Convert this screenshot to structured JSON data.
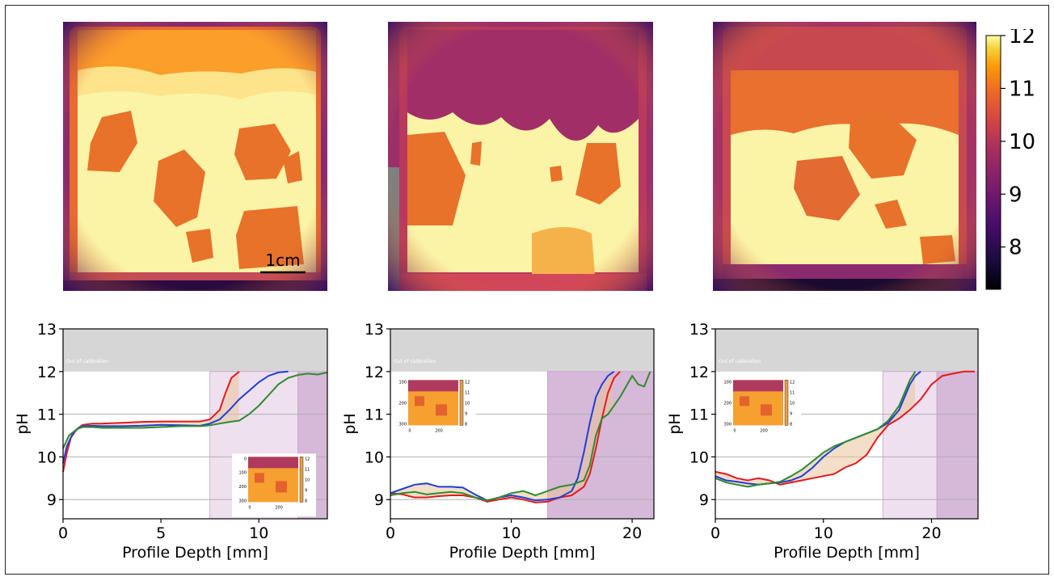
{
  "colorbar": {
    "ticks": [
      12,
      11,
      10,
      9,
      8
    ],
    "range": [
      7.2,
      12.0
    ]
  },
  "scalebar": {
    "label": "1cm"
  },
  "chart_data": [
    {
      "type": "line",
      "xlabel": "Profile Depth [mm]",
      "ylabel": "pH",
      "xlim": [
        0,
        13.5
      ],
      "ylim": [
        8.55,
        13.0
      ],
      "xticks": [
        0,
        5,
        10
      ],
      "yticks": [
        9,
        10,
        11,
        12,
        13
      ],
      "annotation": "Out of calibration",
      "out_of_calibration_above": 12.0,
      "shaded_regions": [
        {
          "x": [
            7.5,
            12.0
          ],
          "shade": "light"
        },
        {
          "x": [
            12.0,
            13.5
          ],
          "shade": "dark"
        }
      ],
      "inset": {
        "yticks": [
          0,
          100,
          200,
          300
        ],
        "xticks": [
          0,
          200
        ],
        "cbar_ticks": [
          12,
          11,
          10,
          9,
          8
        ],
        "position": "lower-right"
      },
      "series": [
        {
          "color": "#e31a1c",
          "x": [
            0,
            0.2,
            0.4,
            0.7,
            1.0,
            1.5,
            2.0,
            3.0,
            4.0,
            5.0,
            6.0,
            7.0,
            7.5,
            8.0,
            8.3,
            8.6,
            9.0
          ],
          "y": [
            9.65,
            10.1,
            10.45,
            10.65,
            10.75,
            10.78,
            10.78,
            10.8,
            10.82,
            10.83,
            10.83,
            10.83,
            10.88,
            11.1,
            11.5,
            11.85,
            12.0
          ]
        },
        {
          "color": "#1f3fd6",
          "x": [
            0,
            0.2,
            0.5,
            0.8,
            1.0,
            1.5,
            2.0,
            3.0,
            4.0,
            5.0,
            6.0,
            7.0,
            7.5,
            8.0,
            8.5,
            9.0,
            9.5,
            10.0,
            10.5,
            11.0,
            11.5
          ],
          "y": [
            9.85,
            10.25,
            10.55,
            10.68,
            10.72,
            10.73,
            10.72,
            10.72,
            10.73,
            10.75,
            10.74,
            10.73,
            10.78,
            10.88,
            11.1,
            11.35,
            11.55,
            11.75,
            11.9,
            11.98,
            12.0
          ]
        },
        {
          "color": "#2e8b2e",
          "x": [
            0,
            0.3,
            0.7,
            1.0,
            1.5,
            2.0,
            3.0,
            4.0,
            5.0,
            6.0,
            7.0,
            7.5,
            8.0,
            8.5,
            9.0,
            9.5,
            10.0,
            10.5,
            11.0,
            11.5,
            12.0,
            12.5,
            13.0,
            13.5
          ],
          "y": [
            10.2,
            10.5,
            10.65,
            10.7,
            10.7,
            10.68,
            10.68,
            10.68,
            10.7,
            10.72,
            10.72,
            10.74,
            10.78,
            10.82,
            10.85,
            11.0,
            11.2,
            11.45,
            11.7,
            11.85,
            11.92,
            11.95,
            11.93,
            11.98
          ]
        }
      ]
    },
    {
      "type": "line",
      "xlabel": "Profile Depth [mm]",
      "ylabel": "pH",
      "xlim": [
        0,
        21.8
      ],
      "ylim": [
        8.55,
        13.0
      ],
      "xticks": [
        0,
        10,
        20
      ],
      "yticks": [
        9,
        10,
        11,
        12,
        13
      ],
      "annotation": "Out of calibration",
      "out_of_calibration_above": 12.0,
      "shaded_regions": [
        {
          "x": [
            13.0,
            21.8
          ],
          "shade": "dark"
        }
      ],
      "inset": {
        "yticks": [
          100,
          200,
          300
        ],
        "xticks": [
          0,
          200
        ],
        "cbar_ticks": [
          12,
          11,
          10,
          9,
          8
        ],
        "position": "upper-left"
      },
      "series": [
        {
          "color": "#e31a1c",
          "x": [
            0,
            1,
            2,
            3,
            4,
            5,
            6,
            7,
            8,
            9,
            10,
            11,
            12,
            13,
            14,
            15,
            16,
            16.5,
            17,
            17.5,
            18,
            18.5,
            19
          ],
          "y": [
            9.15,
            9.12,
            9.05,
            9.05,
            9.08,
            9.1,
            9.1,
            9.05,
            8.95,
            9.0,
            9.05,
            9.0,
            8.93,
            8.95,
            9.05,
            9.1,
            9.3,
            9.6,
            10.2,
            10.9,
            11.5,
            11.85,
            12.0
          ]
        },
        {
          "color": "#1f3fd6",
          "x": [
            0,
            1,
            2,
            3,
            4,
            5,
            6,
            7,
            8,
            9,
            10,
            11,
            12,
            13,
            14,
            15,
            15.5,
            16,
            16.5,
            17,
            17.5,
            18,
            18.5
          ],
          "y": [
            9.15,
            9.25,
            9.35,
            9.38,
            9.3,
            9.3,
            9.28,
            9.12,
            8.98,
            9.05,
            9.1,
            9.05,
            8.98,
            9.0,
            9.05,
            9.2,
            9.5,
            10.1,
            10.8,
            11.4,
            11.7,
            11.9,
            12.0
          ]
        },
        {
          "color": "#2e8b2e",
          "x": [
            0,
            1,
            2,
            3,
            4,
            5,
            6,
            7,
            8,
            9,
            10,
            11,
            12,
            13,
            14,
            15,
            16,
            16.5,
            17,
            17.5,
            18,
            19,
            20,
            20.5,
            21,
            21.5
          ],
          "y": [
            9.1,
            9.15,
            9.18,
            9.12,
            9.15,
            9.18,
            9.15,
            9.05,
            8.98,
            9.05,
            9.15,
            9.2,
            9.1,
            9.2,
            9.3,
            9.35,
            9.45,
            9.8,
            10.5,
            10.9,
            11.0,
            11.4,
            11.9,
            11.7,
            11.65,
            12.0
          ]
        }
      ]
    },
    {
      "type": "line",
      "xlabel": "Profile Depth [mm]",
      "ylabel": "pH",
      "xlim": [
        0,
        24.3
      ],
      "ylim": [
        8.55,
        13.0
      ],
      "xticks": [
        0,
        10,
        20
      ],
      "yticks": [
        9,
        10,
        11,
        12,
        13
      ],
      "annotation": "Out of calibration",
      "out_of_calibration_above": 12.0,
      "shaded_regions": [
        {
          "x": [
            15.5,
            20.5
          ],
          "shade": "light"
        },
        {
          "x": [
            20.5,
            24.3
          ],
          "shade": "dark"
        }
      ],
      "inset": {
        "yticks": [
          100,
          200,
          300
        ],
        "xticks": [
          0,
          200
        ],
        "cbar_ticks": [
          12,
          11,
          10,
          9,
          8
        ],
        "position": "upper-left"
      },
      "series": [
        {
          "color": "#e31a1c",
          "x": [
            0,
            1,
            2,
            3,
            4,
            5,
            6,
            7,
            8,
            9,
            10,
            11,
            12,
            13,
            14,
            15,
            16,
            17,
            18,
            19,
            20,
            21,
            22,
            23,
            24
          ],
          "y": [
            9.65,
            9.6,
            9.5,
            9.45,
            9.5,
            9.45,
            9.35,
            9.4,
            9.45,
            9.5,
            9.55,
            9.6,
            9.75,
            9.85,
            10.05,
            10.45,
            10.75,
            10.9,
            11.1,
            11.35,
            11.7,
            11.9,
            11.95,
            12.0,
            12.0
          ]
        },
        {
          "color": "#1f3fd6",
          "x": [
            0,
            1,
            2,
            3,
            4,
            5,
            6,
            7,
            8,
            9,
            10,
            11,
            12,
            13,
            14,
            15,
            16,
            17,
            17.5,
            18,
            18.5,
            19
          ],
          "y": [
            9.55,
            9.45,
            9.42,
            9.38,
            9.35,
            9.38,
            9.4,
            9.45,
            9.55,
            9.75,
            10.0,
            10.2,
            10.35,
            10.45,
            10.55,
            10.65,
            10.8,
            11.1,
            11.4,
            11.7,
            11.9,
            12.0
          ]
        },
        {
          "color": "#2e8b2e",
          "x": [
            0,
            1,
            2,
            3,
            4,
            5,
            6,
            7,
            8,
            9,
            10,
            11,
            12,
            13,
            14,
            15,
            16,
            17,
            17.5,
            18,
            18.5
          ],
          "y": [
            9.5,
            9.4,
            9.35,
            9.3,
            9.35,
            9.38,
            9.42,
            9.55,
            9.7,
            9.9,
            10.1,
            10.25,
            10.35,
            10.45,
            10.55,
            10.65,
            10.85,
            11.2,
            11.5,
            11.8,
            12.0
          ]
        }
      ]
    }
  ]
}
